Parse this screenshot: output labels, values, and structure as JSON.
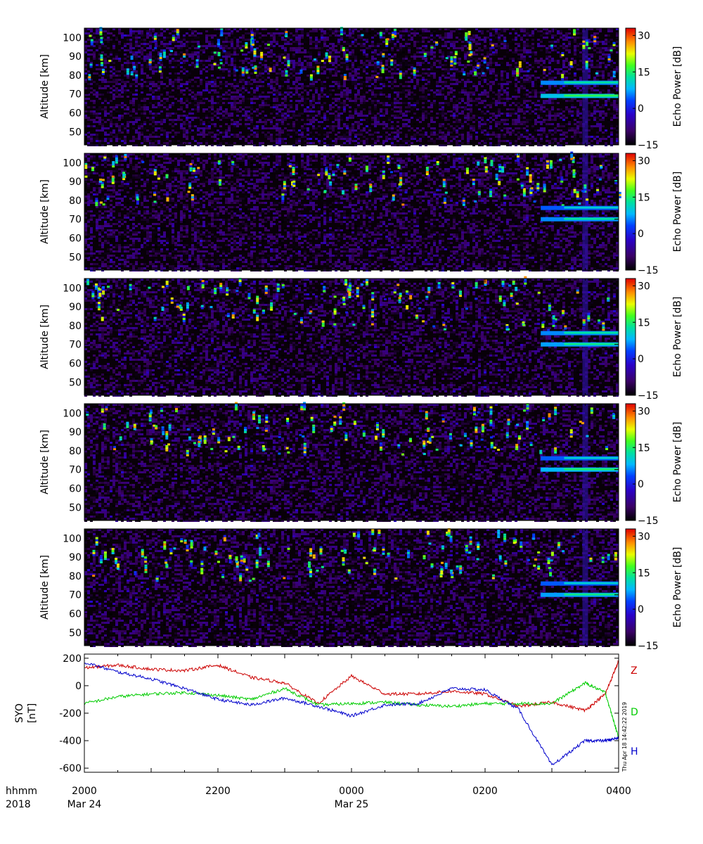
{
  "chart_data": [
    {
      "type": "heatmap",
      "panel": 1,
      "ylabel": "Altitude [km]",
      "yticks": [
        50,
        60,
        70,
        80,
        90,
        100
      ],
      "ylim": [
        43,
        105
      ],
      "colorbar_label": "Echo Power [dB]",
      "colorbar_ticks": [
        -15,
        0,
        15,
        30
      ],
      "zlim": [
        -15,
        33
      ],
      "features": [
        {
          "type": "layer",
          "alt": 76,
          "from": "0250",
          "to": "0400",
          "power": 12
        },
        {
          "type": "layer",
          "alt": 69,
          "from": "0250",
          "to": "0400",
          "power": 15
        }
      ]
    },
    {
      "type": "heatmap",
      "panel": 2,
      "ylabel": "Altitude [km]",
      "yticks": [
        50,
        60,
        70,
        80,
        90,
        100
      ],
      "ylim": [
        43,
        105
      ],
      "colorbar_label": "Echo Power [dB]",
      "colorbar_ticks": [
        -15,
        0,
        15,
        30
      ],
      "zlim": [
        -15,
        33
      ],
      "features": [
        {
          "type": "layer",
          "alt": 76,
          "from": "0250",
          "to": "0400",
          "power": 10
        },
        {
          "type": "layer",
          "alt": 70,
          "from": "0250",
          "to": "0400",
          "power": 12
        }
      ]
    },
    {
      "type": "heatmap",
      "panel": 3,
      "ylabel": "Altitude [km]",
      "yticks": [
        50,
        60,
        70,
        80,
        90,
        100
      ],
      "ylim": [
        43,
        105
      ],
      "colorbar_label": "Echo Power [dB]",
      "colorbar_ticks": [
        -15,
        0,
        15,
        30
      ],
      "zlim": [
        -15,
        33
      ],
      "features": [
        {
          "type": "layer",
          "alt": 76,
          "from": "0250",
          "to": "0400",
          "power": 12
        },
        {
          "type": "layer",
          "alt": 70,
          "from": "0250",
          "to": "0400",
          "power": 13
        }
      ]
    },
    {
      "type": "heatmap",
      "panel": 4,
      "ylabel": "Altitude [km]",
      "yticks": [
        50,
        60,
        70,
        80,
        90,
        100
      ],
      "ylim": [
        43,
        105
      ],
      "colorbar_label": "Echo Power [dB]",
      "colorbar_ticks": [
        -15,
        0,
        15,
        30
      ],
      "zlim": [
        -15,
        33
      ],
      "features": [
        {
          "type": "layer",
          "alt": 76,
          "from": "0250",
          "to": "0400",
          "power": 10
        },
        {
          "type": "layer",
          "alt": 70,
          "from": "0250",
          "to": "0400",
          "power": 14
        }
      ]
    },
    {
      "type": "heatmap",
      "panel": 5,
      "ylabel": "Altitude [km]",
      "yticks": [
        50,
        60,
        70,
        80,
        90,
        100
      ],
      "ylim": [
        43,
        105
      ],
      "colorbar_label": "Echo Power [dB]",
      "colorbar_ticks": [
        -15,
        0,
        15,
        30
      ],
      "zlim": [
        -15,
        33
      ],
      "features": [
        {
          "type": "layer",
          "alt": 76,
          "from": "0250",
          "to": "0400",
          "power": 10
        },
        {
          "type": "layer",
          "alt": 70,
          "from": "0250",
          "to": "0400",
          "power": 13
        }
      ]
    },
    {
      "type": "line",
      "ylabel": "SYO [nT]",
      "yticks": [
        -600,
        -400,
        -200,
        0,
        200
      ],
      "ylim": [
        -630,
        230
      ],
      "x_hours_after_2000": [
        0,
        0.5,
        1,
        1.5,
        2,
        2.5,
        3,
        3.5,
        4,
        4.5,
        5,
        5.5,
        6,
        6.5,
        7,
        7.5,
        7.8,
        8
      ],
      "series": [
        {
          "name": "Z",
          "color": "#cc0000",
          "values": [
            130,
            150,
            120,
            110,
            150,
            60,
            20,
            -130,
            70,
            -60,
            -60,
            -40,
            -60,
            -150,
            -120,
            -180,
            -60,
            180
          ]
        },
        {
          "name": "D",
          "color": "#00cc00",
          "values": [
            -130,
            -80,
            -60,
            -50,
            -70,
            -100,
            -20,
            -140,
            -130,
            -120,
            -140,
            -150,
            -130,
            -130,
            -130,
            20,
            -50,
            -380
          ]
        },
        {
          "name": "H",
          "color": "#0000cc",
          "values": [
            170,
            100,
            50,
            -20,
            -100,
            -140,
            -90,
            -150,
            -220,
            -140,
            -130,
            -20,
            -30,
            -170,
            -580,
            -400,
            -400,
            -380
          ]
        }
      ]
    }
  ],
  "xaxis": {
    "row1_label": "hhmm",
    "row2_label": "2018",
    "ticks": [
      {
        "hour": 0,
        "time": "2000",
        "date": "Mar 24"
      },
      {
        "hour": 2,
        "time": "2200",
        "date": ""
      },
      {
        "hour": 4,
        "time": "0000",
        "date": "Mar 25"
      },
      {
        "hour": 6,
        "time": "0200",
        "date": ""
      },
      {
        "hour": 8,
        "time": "0400",
        "date": ""
      }
    ]
  },
  "timestamp": "Thu Apr 18 14:42:22 2019"
}
